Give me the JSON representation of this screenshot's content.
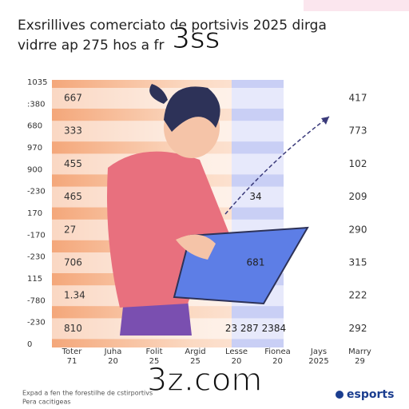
{
  "header": {
    "title_lines": [
      "Exsrillives comerciato de portsivis 2025 dirga",
      "vidrre ap 275 hos a fr"
    ],
    "overlay": "3ss"
  },
  "axis_labels": [
    "1035",
    ":380",
    "680",
    "970",
    "900",
    "-230",
    "170",
    "-170",
    "-230",
    "115",
    "-780",
    "-230",
    "0"
  ],
  "rows": [
    {
      "left": "667",
      "middle": "",
      "right": "417"
    },
    {
      "left": "333",
      "middle": "",
      "right": "773"
    },
    {
      "left": "455",
      "middle": "",
      "right": "102"
    },
    {
      "left": "465",
      "middle": "34",
      "right": "209"
    },
    {
      "left": "27",
      "middle": "",
      "right": "290"
    },
    {
      "left": "706",
      "middle": "681",
      "right": "315"
    },
    {
      "left": "1.34",
      "middle": "",
      "right": "222"
    },
    {
      "left": "810",
      "middle": "23 287 2384",
      "right": "292"
    }
  ],
  "columns": [
    [
      "Toter",
      "71"
    ],
    [
      "Juha",
      "20"
    ],
    [
      "Folit",
      "25"
    ],
    [
      "Argid",
      "25"
    ],
    [
      "Lesse",
      "20"
    ],
    [
      "Fionea",
      "20"
    ],
    [
      "Jays",
      "2025"
    ],
    [
      "Marry",
      "29"
    ]
  ],
  "watermark": "3z.com",
  "footer": {
    "lines": [
      "Expad a fen the forestilhe de cstirportivs",
      "Pera cacitigeas"
    ],
    "logo": "esports"
  }
}
